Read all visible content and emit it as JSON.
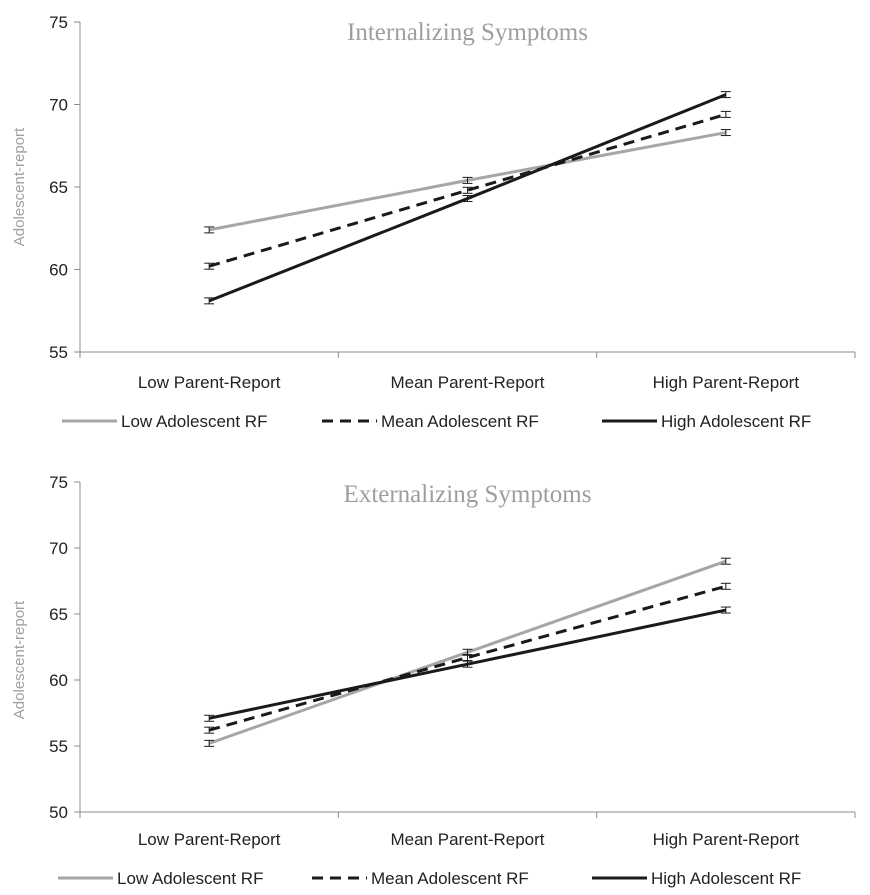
{
  "chart_data": [
    {
      "type": "line",
      "title": "Internalizing Symptoms",
      "xlabel": "",
      "ylabel": "Adolescent-report",
      "categories": [
        "Low Parent-Report",
        "Mean Parent-Report",
        "High Parent-Report"
      ],
      "ylim": [
        55,
        75
      ],
      "yticks": [
        55,
        60,
        65,
        70,
        75
      ],
      "grid": false,
      "legend": "bottom",
      "error_bars": true,
      "series": [
        {
          "name": "Low Adolescent RF",
          "values": [
            62.4,
            65.4,
            68.3
          ],
          "color": "#a6a6a6",
          "style": "solid"
        },
        {
          "name": "Mean Adolescent RF",
          "values": [
            60.2,
            64.8,
            69.4
          ],
          "color": "#1a1a1a",
          "style": "dashed"
        },
        {
          "name": "High Adolescent RF",
          "values": [
            58.1,
            64.3,
            70.6
          ],
          "color": "#1a1a1a",
          "style": "solid"
        }
      ]
    },
    {
      "type": "line",
      "title": "Externalizing Symptoms",
      "xlabel": "",
      "ylabel": "Adolescent-report",
      "categories": [
        "Low Parent-Report",
        "Mean Parent-Report",
        "High Parent-Report"
      ],
      "ylim": [
        50,
        75
      ],
      "yticks": [
        50,
        55,
        60,
        65,
        70,
        75
      ],
      "grid": false,
      "legend": "bottom",
      "error_bars": true,
      "series": [
        {
          "name": "Low Adolescent RF",
          "values": [
            55.2,
            62.1,
            69.0
          ],
          "color": "#a6a6a6",
          "style": "solid"
        },
        {
          "name": "Mean Adolescent RF",
          "values": [
            56.2,
            61.7,
            67.1
          ],
          "color": "#1a1a1a",
          "style": "dashed"
        },
        {
          "name": "High Adolescent RF",
          "values": [
            57.1,
            61.2,
            65.3
          ],
          "color": "#1a1a1a",
          "style": "solid"
        }
      ]
    }
  ]
}
